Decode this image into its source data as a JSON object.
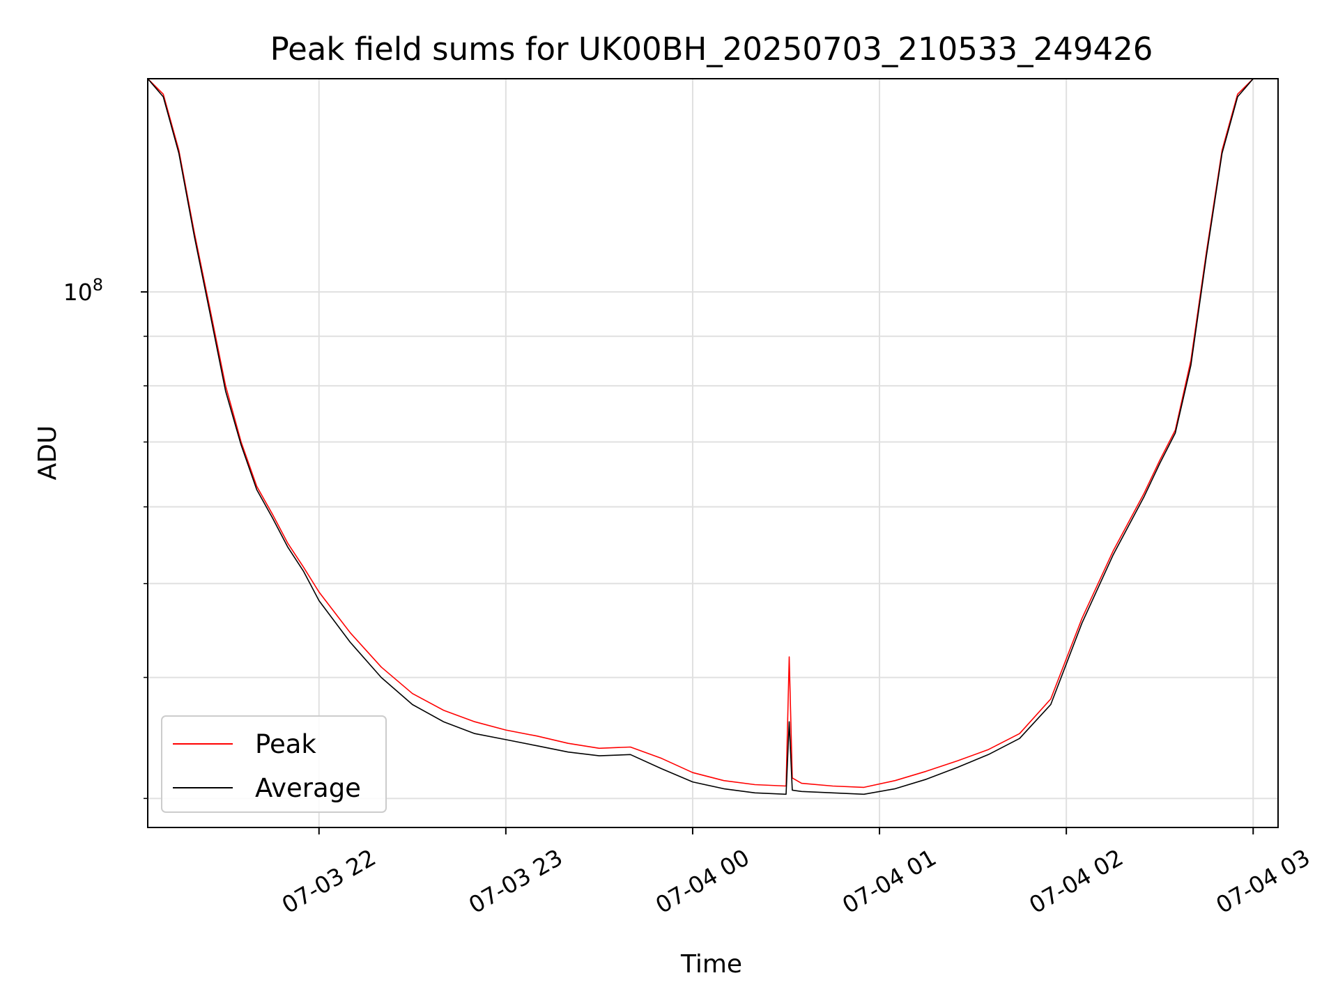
{
  "chart_data": {
    "type": "line",
    "title": "Peak field sums for UK00BH_20250703_210533_249426",
    "xlabel": "Time",
    "ylabel": "ADU",
    "y_scale": "log",
    "ylim": [
      28000000,
      166000000
    ],
    "xlim": [
      "2025-07-03 21:05",
      "2025-07-04 03:08"
    ],
    "x_ticks": [
      {
        "label": "07-03 22",
        "value": "2025-07-03 22:00"
      },
      {
        "label": "07-03 23",
        "value": "2025-07-03 23:00"
      },
      {
        "label": "07-04 00",
        "value": "2025-07-04 00:00"
      },
      {
        "label": "07-04 01",
        "value": "2025-07-04 01:00"
      },
      {
        "label": "07-04 02",
        "value": "2025-07-04 02:00"
      },
      {
        "label": "07-04 03",
        "value": "2025-07-04 03:00"
      }
    ],
    "y_ticks": [
      {
        "base": "10",
        "exp": "8",
        "value": 100000000
      }
    ],
    "grid": true,
    "legend_position": "lower-left",
    "series": [
      {
        "name": "Peak",
        "color": "#ff0000",
        "x": [
          "2025-07-03 21:05",
          "2025-07-03 21:10",
          "2025-07-03 21:15",
          "2025-07-03 21:20",
          "2025-07-03 21:25",
          "2025-07-03 21:30",
          "2025-07-03 21:35",
          "2025-07-03 21:40",
          "2025-07-03 21:45",
          "2025-07-03 21:50",
          "2025-07-03 21:55",
          "2025-07-03 22:00",
          "2025-07-03 22:10",
          "2025-07-03 22:20",
          "2025-07-03 22:30",
          "2025-07-03 22:40",
          "2025-07-03 22:50",
          "2025-07-03 23:00",
          "2025-07-03 23:10",
          "2025-07-03 23:20",
          "2025-07-03 23:30",
          "2025-07-03 23:40",
          "2025-07-03 23:50",
          "2025-07-04 00:00",
          "2025-07-04 00:10",
          "2025-07-04 00:20",
          "2025-07-04 00:30",
          "2025-07-04 00:31",
          "2025-07-04 00:32",
          "2025-07-04 00:35",
          "2025-07-04 00:45",
          "2025-07-04 00:55",
          "2025-07-04 01:05",
          "2025-07-04 01:15",
          "2025-07-04 01:25",
          "2025-07-04 01:35",
          "2025-07-04 01:45",
          "2025-07-04 01:55",
          "2025-07-04 02:05",
          "2025-07-04 02:15",
          "2025-07-04 02:25",
          "2025-07-04 02:30",
          "2025-07-04 02:35",
          "2025-07-04 02:40",
          "2025-07-04 02:45",
          "2025-07-04 02:50",
          "2025-07-04 02:55",
          "2025-07-04 03:00",
          "2025-07-04 03:08"
        ],
        "y": [
          166000000,
          160000000,
          140000000,
          115000000,
          96000000,
          80000000,
          70000000,
          63000000,
          59000000,
          55000000,
          52000000,
          49000000,
          44500000,
          41000000,
          38500000,
          37000000,
          36000000,
          35300000,
          34800000,
          34200000,
          33800000,
          33900000,
          33000000,
          31900000,
          31300000,
          31000000,
          30900000,
          42000000,
          31500000,
          31100000,
          30900000,
          30800000,
          31300000,
          32000000,
          32800000,
          33700000,
          35000000,
          38000000,
          46000000,
          54000000,
          62000000,
          67000000,
          72000000,
          85000000,
          110000000,
          140000000,
          160000000,
          166000000,
          166000000
        ]
      },
      {
        "name": "Average",
        "color": "#000000",
        "x": [
          "2025-07-03 21:05",
          "2025-07-03 21:10",
          "2025-07-03 21:15",
          "2025-07-03 21:20",
          "2025-07-03 21:25",
          "2025-07-03 21:30",
          "2025-07-03 21:35",
          "2025-07-03 21:40",
          "2025-07-03 21:45",
          "2025-07-03 21:50",
          "2025-07-03 21:55",
          "2025-07-03 22:00",
          "2025-07-03 22:10",
          "2025-07-03 22:20",
          "2025-07-03 22:30",
          "2025-07-03 22:40",
          "2025-07-03 22:50",
          "2025-07-03 23:00",
          "2025-07-03 23:10",
          "2025-07-03 23:20",
          "2025-07-03 23:30",
          "2025-07-03 23:40",
          "2025-07-03 23:50",
          "2025-07-04 00:00",
          "2025-07-04 00:10",
          "2025-07-04 00:20",
          "2025-07-04 00:30",
          "2025-07-04 00:31",
          "2025-07-04 00:32",
          "2025-07-04 00:35",
          "2025-07-04 00:45",
          "2025-07-04 00:55",
          "2025-07-04 01:05",
          "2025-07-04 01:15",
          "2025-07-04 01:25",
          "2025-07-04 01:35",
          "2025-07-04 01:45",
          "2025-07-04 01:55",
          "2025-07-04 02:05",
          "2025-07-04 02:15",
          "2025-07-04 02:25",
          "2025-07-04 02:30",
          "2025-07-04 02:35",
          "2025-07-04 02:40",
          "2025-07-04 02:45",
          "2025-07-04 02:50",
          "2025-07-04 02:55",
          "2025-07-04 03:00",
          "2025-07-04 03:08"
        ],
        "y": [
          166000000,
          159000000,
          139000000,
          114000000,
          95000000,
          79000000,
          69500000,
          62500000,
          58500000,
          54500000,
          51500000,
          48000000,
          43500000,
          40000000,
          37500000,
          36000000,
          35000000,
          34500000,
          34000000,
          33500000,
          33200000,
          33300000,
          32200000,
          31200000,
          30700000,
          30400000,
          30300000,
          36000000,
          30600000,
          30500000,
          30400000,
          30300000,
          30700000,
          31400000,
          32300000,
          33300000,
          34600000,
          37500000,
          45500000,
          53500000,
          61500000,
          66500000,
          71500000,
          84000000,
          109000000,
          139000000,
          159000000,
          166000000,
          166000000
        ]
      }
    ]
  }
}
